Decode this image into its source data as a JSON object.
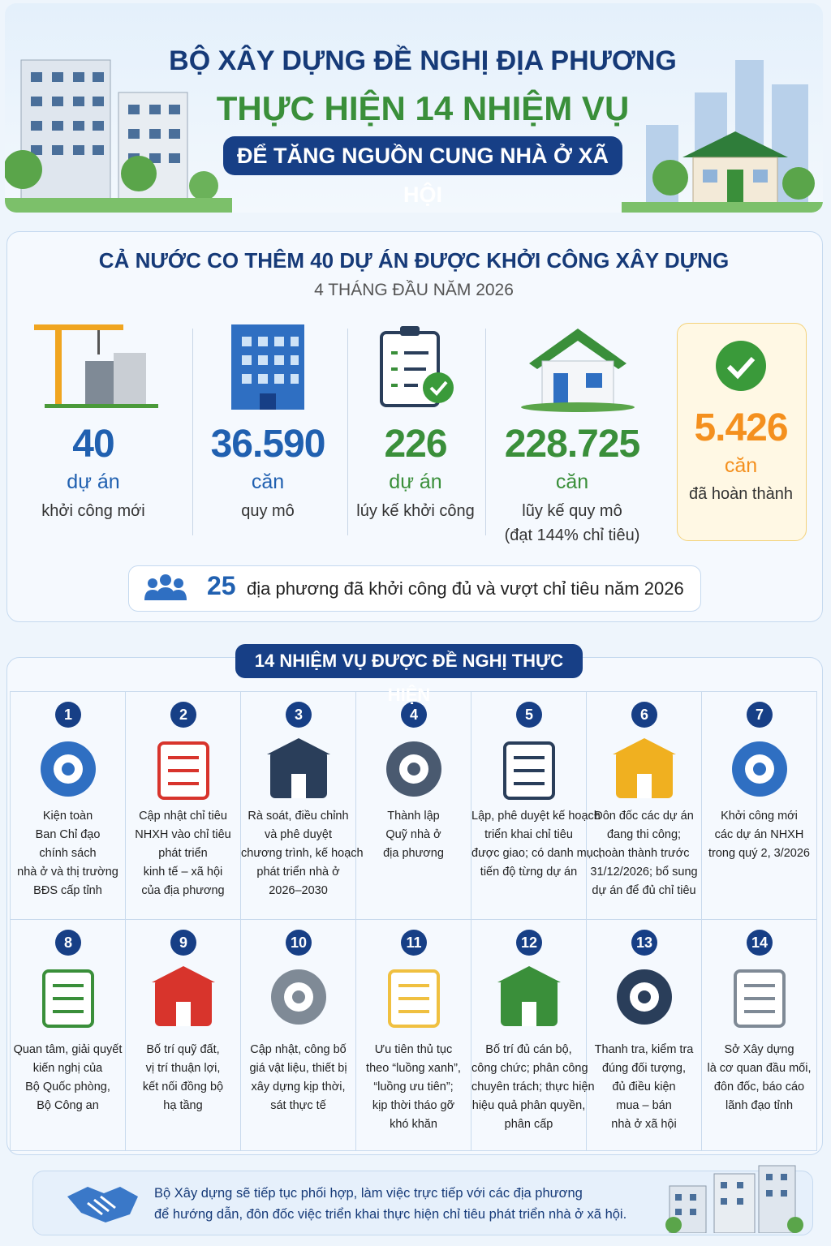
{
  "header": {
    "line1": "BỘ XÂY DỰNG ĐỀ NGHỊ ĐỊA PHƯƠNG",
    "line2": "THỰC HIỆN 14 NHIỆM VỤ",
    "line3": "ĐỂ TĂNG NGUỒN CUNG NHÀ Ở XÃ HỘI"
  },
  "stats": {
    "title": "CẢ NƯỚC CO THÊM 40 DỰ ÁN ĐƯỢC KHỞI CÔNG XÂY DỰNG",
    "subtitle": "4 THÁNG ĐẦU NĂM 2026",
    "items": [
      {
        "value": "40",
        "unit": "dự án",
        "label": "khởi công mới"
      },
      {
        "value": "36.590",
        "unit": "căn",
        "label": "quy mô"
      },
      {
        "value": "226",
        "unit": "dự án",
        "label": "lúy kế khởi công"
      },
      {
        "value": "228.725",
        "unit": "căn",
        "label": "lũy kế quy mô",
        "note": "(đạt 144% chỉ tiêu)"
      },
      {
        "value": "5.426",
        "unit": "căn",
        "label": "đã hoàn thành"
      }
    ],
    "footer": {
      "value": "25",
      "text": "địa phương đã khởi công đủ và vượt chỉ tiêu năm 2026"
    }
  },
  "tasks": {
    "title": "14 NHIỆM VỤ ĐƯỢC ĐỀ NGHỊ THỰC HIỆN",
    "items": [
      {
        "number": "1",
        "lines": [
          "Kiện toàn",
          "Ban Chỉ đạo",
          "chính sách",
          "nhà ở và thị trường",
          "BĐS cấp tỉnh"
        ]
      },
      {
        "number": "2",
        "lines": [
          "Cập nhật chỉ tiêu",
          "NHXH vào chỉ tiêu",
          "phát triển",
          "kinh tế – xã hội",
          "của địa phương"
        ]
      },
      {
        "number": "3",
        "lines": [
          "Rà soát, điều chỉnh",
          "và phê duyệt",
          "chương trình, kế hoạch",
          "phát triển nhà ở",
          "2026–2030"
        ]
      },
      {
        "number": "4",
        "lines": [
          "Thành lập",
          "Quỹ nhà ở",
          "địa phương"
        ]
      },
      {
        "number": "5",
        "lines": [
          "Lập, phê duyệt kế hoạch",
          "triển khai chỉ tiêu",
          "được giao; có danh mục,",
          "tiến độ từng dự án"
        ]
      },
      {
        "number": "6",
        "lines": [
          "Đôn đốc các dự án",
          "đang thi công;",
          "hoàn thành trước",
          "31/12/2026; bổ sung",
          "dự án để đủ chỉ tiêu"
        ]
      },
      {
        "number": "7",
        "lines": [
          "Khởi công mới",
          "các dự án NHXH",
          "trong quý 2, 3/2026"
        ]
      },
      {
        "number": "8",
        "lines": [
          "Quan tâm, giải quyết",
          "kiến nghị của",
          "Bộ Quốc phòng,",
          "Bộ Công an"
        ]
      },
      {
        "number": "9",
        "lines": [
          "Bố trí quỹ đất,",
          "vị trí thuận lợi,",
          "kết nối đồng bộ",
          "hạ tầng"
        ]
      },
      {
        "number": "10",
        "lines": [
          "Cập nhật, công bố",
          "giá vật liệu, thiết bị",
          "xây dựng kịp thời,",
          "sát thực tế"
        ]
      },
      {
        "number": "11",
        "lines": [
          "Ưu tiên thủ tục",
          "theo “luồng xanh”,",
          "“luồng ưu tiên”;",
          "kịp thời tháo gỡ",
          "khó khăn"
        ]
      },
      {
        "number": "12",
        "lines": [
          "Bố trí đủ cán bộ,",
          "công chức; phân công",
          "chuyên trách; thực hiện",
          "hiệu quả phân quyền,",
          "phân cấp"
        ]
      },
      {
        "number": "13",
        "lines": [
          "Thanh tra, kiểm tra",
          "đúng đối tượng,",
          "đủ điều kiện",
          "mua – bán",
          "nhà ở xã hội"
        ]
      },
      {
        "number": "14",
        "lines": [
          "Sở Xây dựng",
          "là cơ quan đầu mối,",
          "đôn đốc, báo cáo",
          "lãnh đạo tỉnh"
        ]
      }
    ]
  },
  "closing": {
    "lines": [
      "Bộ Xây dựng sẽ tiếp tục phối hợp, làm việc trực tiếp với các địa phương",
      "để hướng dẫn, đôn đốc việc triển khai thực hiện chỉ tiêu phát triển nhà ở xã hội."
    ]
  }
}
